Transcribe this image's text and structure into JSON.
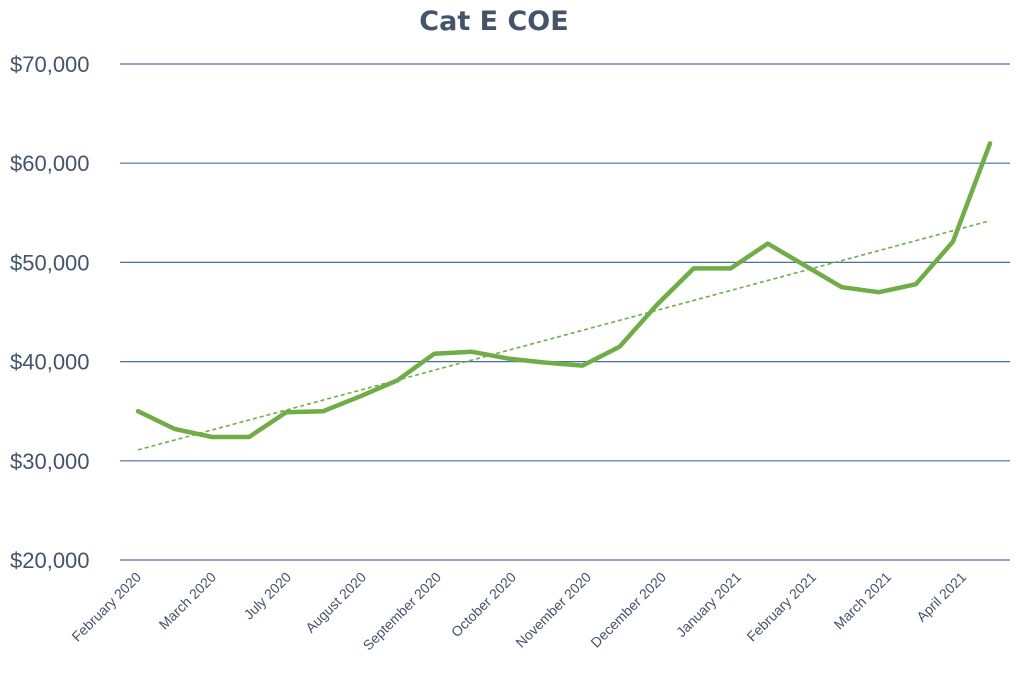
{
  "chart_data": {
    "type": "line",
    "title": "Cat E COE",
    "xlabel": "",
    "ylabel": "",
    "ylim": [
      20000,
      70000
    ],
    "yticks": [
      20000,
      30000,
      40000,
      50000,
      60000,
      70000
    ],
    "ytick_labels": [
      "$20,000",
      "$30,000",
      "$40,000",
      "$50,000",
      "$60,000",
      "$70,000"
    ],
    "x_tick_labels": [
      "February 2020",
      "March 2020",
      "July 2020",
      "August 2020",
      "September 2020",
      "October 2020",
      "November 2020",
      "December 2020",
      "January 2021",
      "February 2021",
      "March 2021",
      "April 2021"
    ],
    "grid": true,
    "legend": "none",
    "series": [
      {
        "color": "#70ad47",
        "values": [
          35000,
          33200,
          32400,
          32400,
          34900,
          35000,
          36500,
          38100,
          40800,
          41000,
          40300,
          39900,
          39600,
          41500,
          45700,
          49400,
          49400,
          51900,
          49700,
          47500,
          47000,
          47800,
          52100,
          62000
        ]
      }
    ],
    "trendline": {
      "type": "linear",
      "color": "#70ad47",
      "style": "dashed",
      "start": 31100,
      "end": 54200
    }
  }
}
